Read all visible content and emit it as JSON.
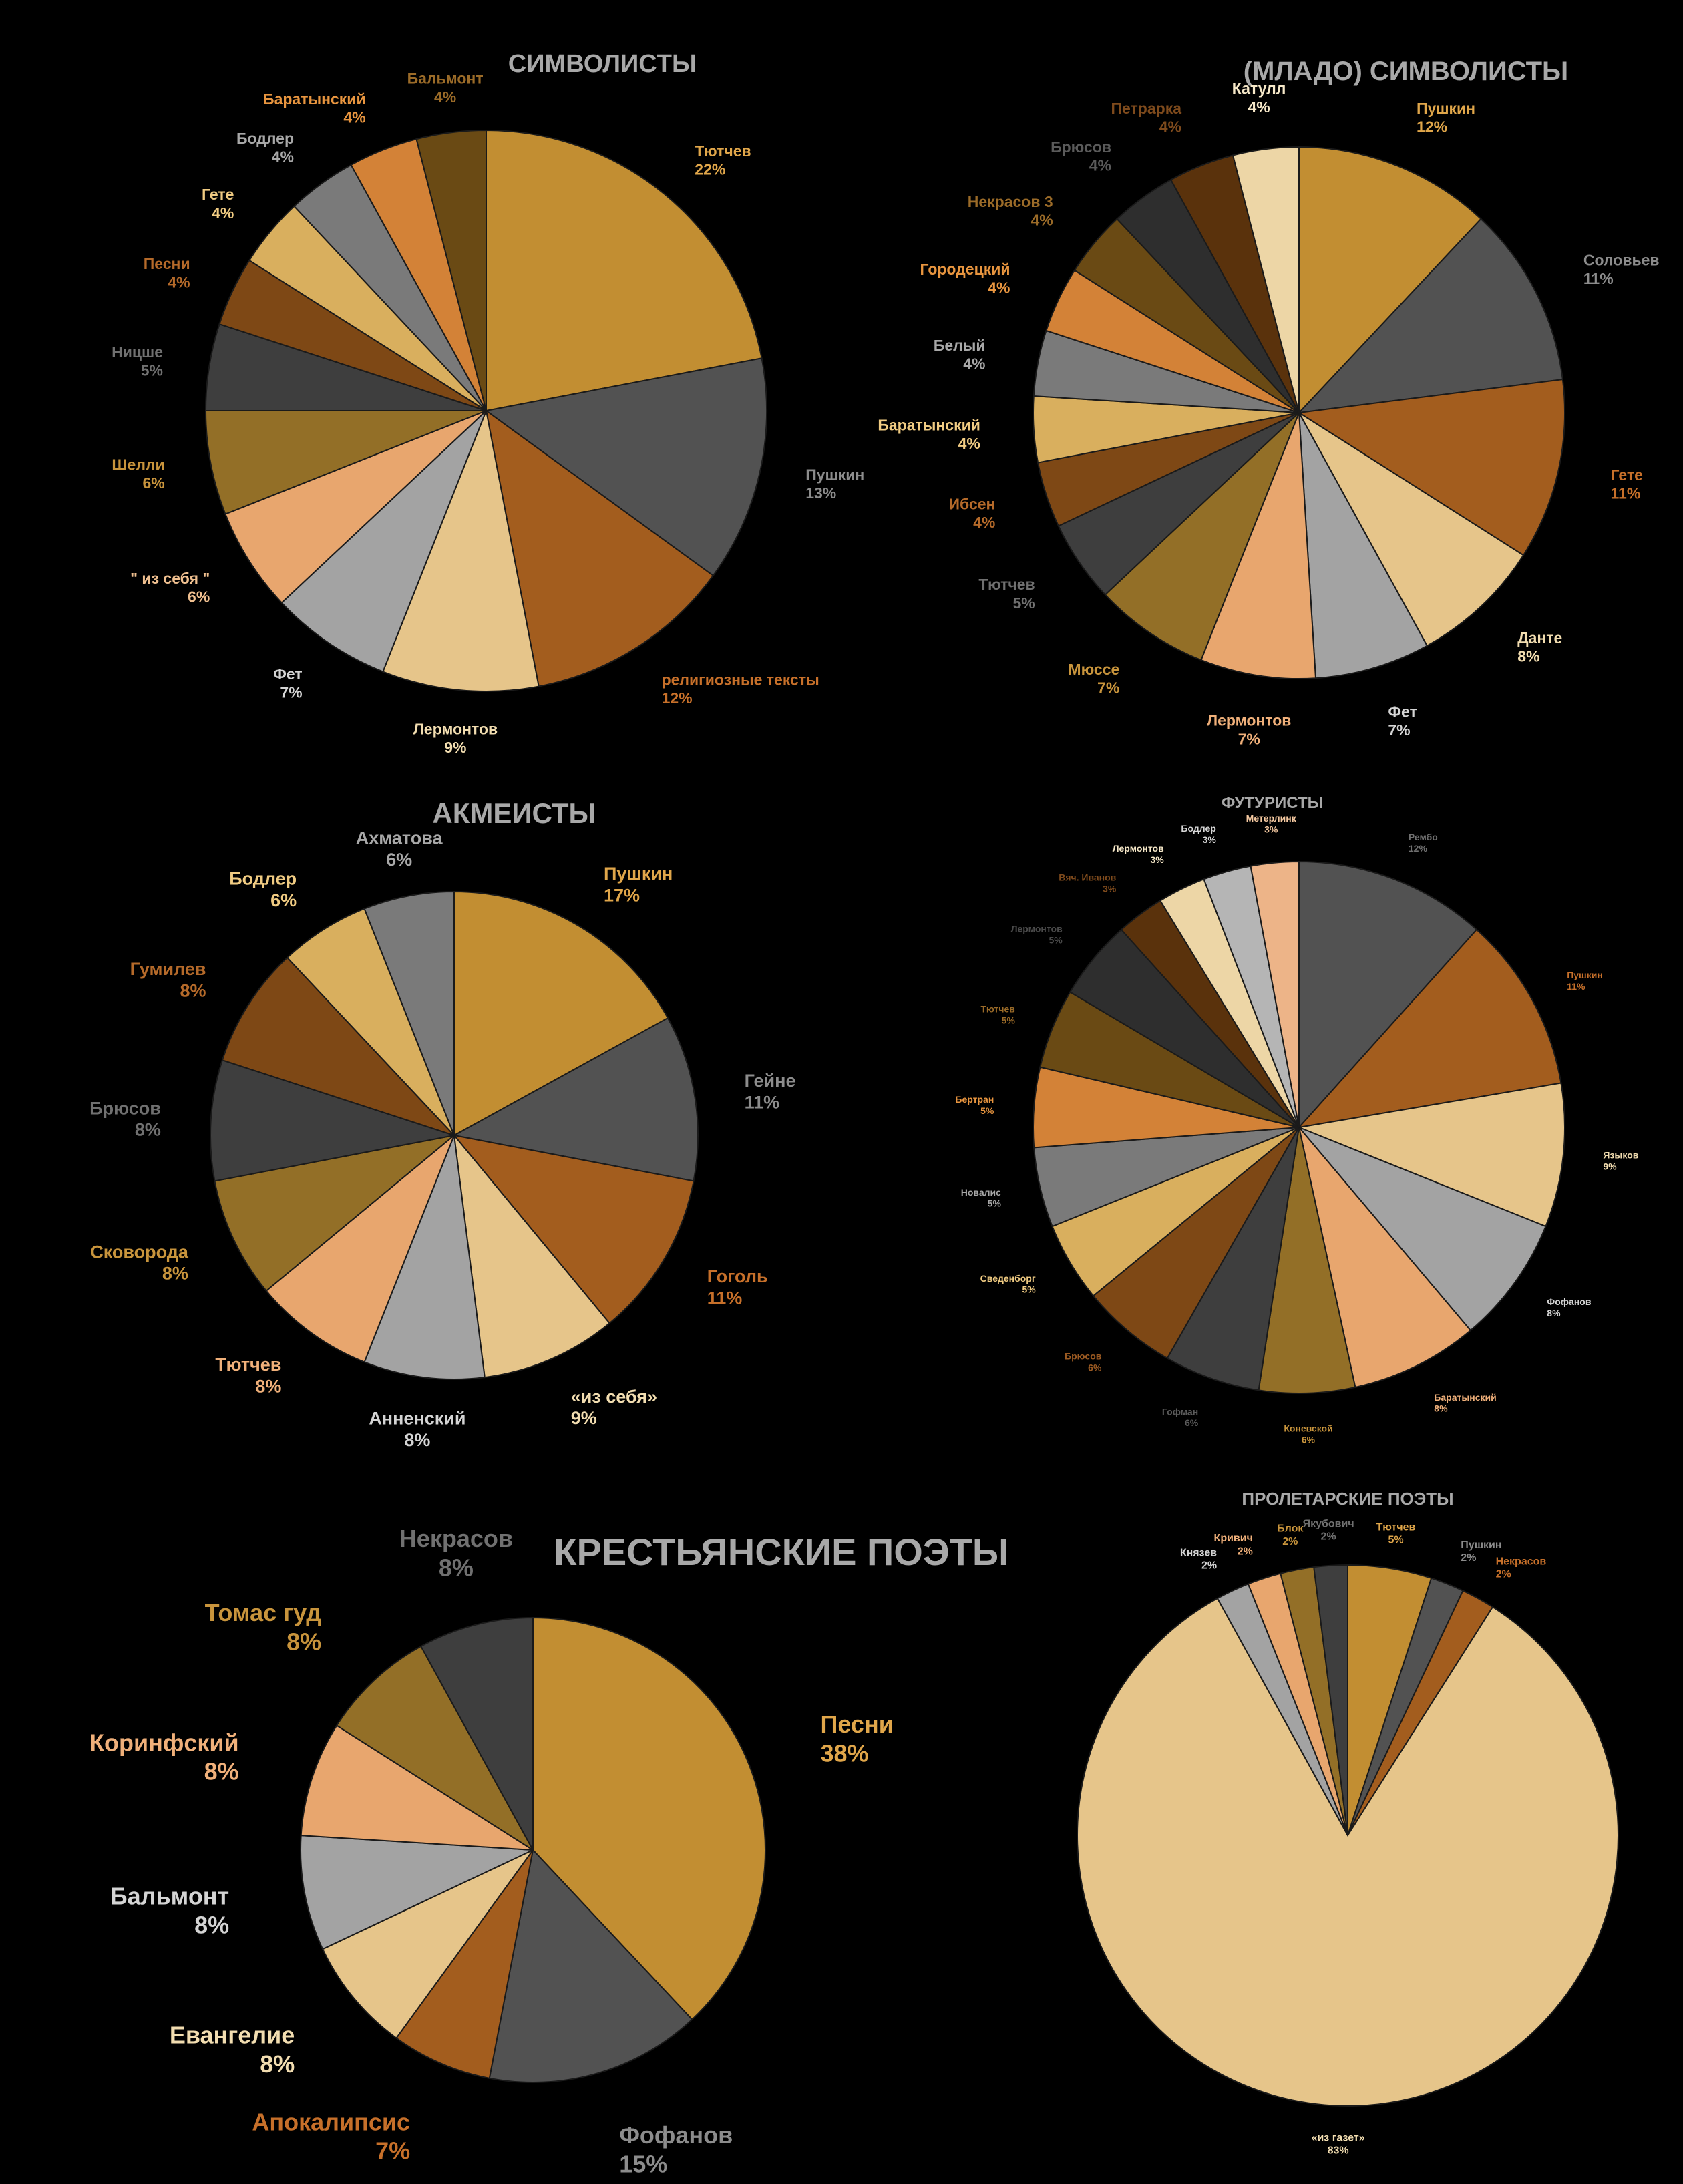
{
  "chart_data": [
    {
      "type": "pie",
      "title": "СИМВОЛИСТЫ",
      "slices": [
        {
          "label": "Тютчев",
          "percent": "22%",
          "value": 22,
          "color": "#C28E32",
          "label_color": "#E0A64A"
        },
        {
          "label": "Пушкин",
          "percent": "13%",
          "value": 13,
          "color": "#525252",
          "label_color": "#8C8C8C"
        },
        {
          "label": "религиозные тексты",
          "percent": "12%",
          "value": 12,
          "color": "#A35D1E",
          "label_color": "#C7702A"
        },
        {
          "label": "Лермонтов",
          "percent": "9%",
          "value": 9,
          "color": "#E6C58A",
          "label_color": "#F2DDB0"
        },
        {
          "label": "Фет",
          "percent": "7%",
          "value": 7,
          "color": "#A3A3A3",
          "label_color": "#D4D4D4"
        },
        {
          "label": "\" из себя \"",
          "percent": "6%",
          "value": 6,
          "color": "#E8A66E",
          "label_color": "#F0C090"
        },
        {
          "label": "Шелли",
          "percent": "6%",
          "value": 6,
          "color": "#936F27",
          "label_color": "#C8943C"
        },
        {
          "label": "Ницше",
          "percent": "5%",
          "value": 5,
          "color": "#3E3E3E",
          "label_color": "#707070"
        },
        {
          "label": "Песни",
          "percent": "4%",
          "value": 4,
          "color": "#7E4815",
          "label_color": "#B56A2A"
        },
        {
          "label": "Гете",
          "percent": "4%",
          "value": 4,
          "color": "#D9AF5E",
          "label_color": "#F0CB82"
        },
        {
          "label": "Бодлер",
          "percent": "4%",
          "value": 4,
          "color": "#7A7A7A",
          "label_color": "#A8A8A8"
        },
        {
          "label": "Баратынский",
          "percent": "4%",
          "value": 4,
          "color": "#D38237",
          "label_color": "#E8953F"
        },
        {
          "label": "Бальмонт",
          "percent": "4%",
          "value": 4,
          "color": "#6A4A14",
          "label_color": "#9B6B28"
        }
      ]
    },
    {
      "type": "pie",
      "title": "(МЛАДО) СИМВОЛИСТЫ",
      "slices": [
        {
          "label": "Пушкин",
          "percent": "12%",
          "value": 12,
          "color": "#C28E32",
          "label_color": "#E0A64A"
        },
        {
          "label": "Соловьев",
          "percent": "11%",
          "value": 11,
          "color": "#525252",
          "label_color": "#8C8C8C"
        },
        {
          "label": "Гете",
          "percent": "11%",
          "value": 11,
          "color": "#A35D1E",
          "label_color": "#C7702A"
        },
        {
          "label": "Данте",
          "percent": "8%",
          "value": 8,
          "color": "#E6C58A",
          "label_color": "#F2DDB0"
        },
        {
          "label": "Фет",
          "percent": "7%",
          "value": 7,
          "color": "#A3A3A3",
          "label_color": "#D4D4D4"
        },
        {
          "label": "Лермонтов",
          "percent": "7%",
          "value": 7,
          "color": "#E8A66E",
          "label_color": "#F0B07A"
        },
        {
          "label": "Мюссе",
          "percent": "7%",
          "value": 7,
          "color": "#936F27",
          "label_color": "#C8943C"
        },
        {
          "label": "Тютчев",
          "percent": "5%",
          "value": 5,
          "color": "#3E3E3E",
          "label_color": "#707070"
        },
        {
          "label": "Ибсен",
          "percent": "4%",
          "value": 4,
          "color": "#7E4815",
          "label_color": "#B56A2A"
        },
        {
          "label": "Баратынский",
          "percent": "4%",
          "value": 4,
          "color": "#D9AF5E",
          "label_color": "#F0CB82"
        },
        {
          "label": "Белый",
          "percent": "4%",
          "value": 4,
          "color": "#7A7A7A",
          "label_color": "#A8A8A8"
        },
        {
          "label": "Городецкий",
          "percent": "4%",
          "value": 4,
          "color": "#D38237",
          "label_color": "#E8953F"
        },
        {
          "label": "Некрасов 3",
          "percent": "4%",
          "value": 4,
          "color": "#6A4A14",
          "label_color": "#9B6B28"
        },
        {
          "label": "Брюсов",
          "percent": "4%",
          "value": 4,
          "color": "#2E2E2E",
          "label_color": "#5A5A5A"
        },
        {
          "label": "Петрарка",
          "percent": "4%",
          "value": 4,
          "color": "#5A320C",
          "label_color": "#7E4A1C"
        },
        {
          "label": "Катулл",
          "percent": "4%",
          "value": 4,
          "color": "#EDD6A6",
          "label_color": "#F6E8C8"
        }
      ]
    },
    {
      "type": "pie",
      "title": "АКМЕИСТЫ",
      "slices": [
        {
          "label": "Пушкин",
          "percent": "17%",
          "value": 17,
          "color": "#C28E32",
          "label_color": "#E0A64A"
        },
        {
          "label": "Гейне",
          "percent": "11%",
          "value": 11,
          "color": "#525252",
          "label_color": "#8C8C8C"
        },
        {
          "label": "Гоголь",
          "percent": "11%",
          "value": 11,
          "color": "#A35D1E",
          "label_color": "#C7702A"
        },
        {
          "label": "«из себя»",
          "percent": "9%",
          "value": 9,
          "color": "#E6C58A",
          "label_color": "#F2DDB0"
        },
        {
          "label": "Анненский",
          "percent": "8%",
          "value": 8,
          "color": "#A3A3A3",
          "label_color": "#D4D4D4"
        },
        {
          "label": "Тютчев",
          "percent": "8%",
          "value": 8,
          "color": "#E8A66E",
          "label_color": "#F0B07A"
        },
        {
          "label": "Сковорода",
          "percent": "8%",
          "value": 8,
          "color": "#936F27",
          "label_color": "#C8943C"
        },
        {
          "label": "Брюсов",
          "percent": "8%",
          "value": 8,
          "color": "#3E3E3E",
          "label_color": "#707070"
        },
        {
          "label": "Гумилев",
          "percent": "8%",
          "value": 8,
          "color": "#7E4815",
          "label_color": "#B56A2A"
        },
        {
          "label": "Бодлер",
          "percent": "6%",
          "value": 6,
          "color": "#D9AF5E",
          "label_color": "#F0CB82"
        },
        {
          "label": "Ахматова",
          "percent": "6%",
          "value": 6,
          "color": "#7A7A7A",
          "label_color": "#A8A8A8"
        }
      ]
    },
    {
      "type": "pie",
      "title": "ФУТУРИСТЫ",
      "slices": [
        {
          "label": "Рембо",
          "percent": "12%",
          "value": 12,
          "color": "#525252",
          "label_color": "#707070"
        },
        {
          "label": "Пушкин",
          "percent": "11%",
          "value": 11,
          "color": "#A35D1E",
          "label_color": "#C7702A"
        },
        {
          "label": "Языков",
          "percent": "9%",
          "value": 9,
          "color": "#E6C58A",
          "label_color": "#F2DDB0"
        },
        {
          "label": "Фофанов",
          "percent": "8%",
          "value": 8,
          "color": "#A3A3A3",
          "label_color": "#D4D4D4"
        },
        {
          "label": "Баратынский",
          "percent": "8%",
          "value": 8,
          "color": "#E8A66E",
          "label_color": "#F0B07A"
        },
        {
          "label": "Коневской",
          "percent": "6%",
          "value": 6,
          "color": "#936F27",
          "label_color": "#C8943C"
        },
        {
          "label": "Гофман",
          "percent": "6%",
          "value": 6,
          "color": "#3E3E3E",
          "label_color": "#5A5A5A"
        },
        {
          "label": "Брюсов",
          "percent": "6%",
          "value": 6,
          "color": "#7E4815",
          "label_color": "#9B5A22"
        },
        {
          "label": "Сведенборг",
          "percent": "5%",
          "value": 5,
          "color": "#D9AF5E",
          "label_color": "#F0CB82"
        },
        {
          "label": "Новалис",
          "percent": "5%",
          "value": 5,
          "color": "#7A7A7A",
          "label_color": "#A8A8A8"
        },
        {
          "label": "Бертран",
          "percent": "5%",
          "value": 5,
          "color": "#D38237",
          "label_color": "#E8953F"
        },
        {
          "label": "Тютчев",
          "percent": "5%",
          "value": 5,
          "color": "#6A4A14",
          "label_color": "#9B6B28"
        },
        {
          "label": "Лермонтов",
          "percent": "5%",
          "value": 5,
          "color": "#2E2E2E",
          "label_color": "#4A4A4A"
        },
        {
          "label": "Вяч. Иванов",
          "percent": "3%",
          "value": 3,
          "color": "#5A320C",
          "label_color": "#7E4A1C"
        },
        {
          "label": "Лермонтов",
          "percent": "3%",
          "value": 3,
          "color": "#EDD6A6",
          "label_color": "#F6E8C8"
        },
        {
          "label": "Бодлер",
          "percent": "3%",
          "value": 3,
          "color": "#B5B5B5",
          "label_color": "#D8D8D8"
        },
        {
          "label": "Метерлинк",
          "percent": "3%",
          "value": 3,
          "color": "#EDB488",
          "label_color": "#F4C8A0"
        }
      ]
    },
    {
      "type": "pie",
      "title": "КРЕСТЬЯНСКИЕ ПОЭТЫ",
      "slices": [
        {
          "label": "Песни",
          "percent": "38%",
          "value": 38,
          "color": "#C28E32",
          "label_color": "#E0A64A"
        },
        {
          "label": "Фофанов",
          "percent": "15%",
          "value": 15,
          "color": "#525252",
          "label_color": "#8C8C8C"
        },
        {
          "label": "Апокалипсис",
          "percent": "7%",
          "value": 7,
          "color": "#A35D1E",
          "label_color": "#C7702A"
        },
        {
          "label": "Евангелие",
          "percent": "8%",
          "value": 8,
          "color": "#E6C58A",
          "label_color": "#F2DDB0"
        },
        {
          "label": "Бальмонт",
          "percent": "8%",
          "value": 8,
          "color": "#A3A3A3",
          "label_color": "#D4D4D4"
        },
        {
          "label": "Коринфский",
          "percent": "8%",
          "value": 8,
          "color": "#E8A66E",
          "label_color": "#F0B07A"
        },
        {
          "label": "Томас гуд",
          "percent": "8%",
          "value": 8,
          "color": "#936F27",
          "label_color": "#C8943C"
        },
        {
          "label": "Некрасов",
          "percent": "8%",
          "value": 8,
          "color": "#3E3E3E",
          "label_color": "#707070"
        }
      ]
    },
    {
      "type": "pie",
      "title": "ПРОЛЕТАРСКИЕ ПОЭТЫ",
      "slices": [
        {
          "label": "Тютчев",
          "percent": "5%",
          "value": 5,
          "color": "#C28E32",
          "label_color": "#E0A64A"
        },
        {
          "label": "Пушкин",
          "percent": "2%",
          "value": 2,
          "color": "#525252",
          "label_color": "#8C8C8C"
        },
        {
          "label": "Некрасов",
          "percent": "2%",
          "value": 2,
          "color": "#A35D1E",
          "label_color": "#C7702A"
        },
        {
          "label": "«из газет»",
          "percent": "83%",
          "value": 83,
          "color": "#E6C58A",
          "label_color": "#F2DDB0"
        },
        {
          "label": "Князев",
          "percent": "2%",
          "value": 2,
          "color": "#A3A3A3",
          "label_color": "#D4D4D4"
        },
        {
          "label": "Кривич",
          "percent": "2%",
          "value": 2,
          "color": "#E8A66E",
          "label_color": "#F0B07A"
        },
        {
          "label": "Блок",
          "percent": "2%",
          "value": 2,
          "color": "#936F27",
          "label_color": "#C8943C"
        },
        {
          "label": "Якубович",
          "percent": "2%",
          "value": 2,
          "color": "#3E3E3E",
          "label_color": "#707070"
        }
      ]
    }
  ]
}
